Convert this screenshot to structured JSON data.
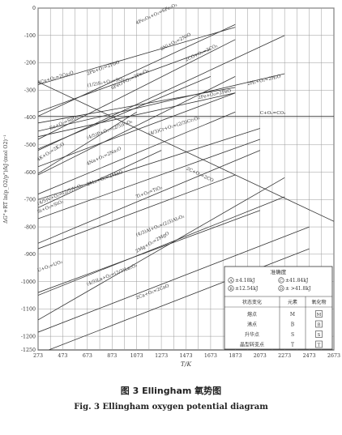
{
  "chart_data": {
    "type": "line",
    "xlabel": "T/K",
    "ylabel": "ΔG°+RT ln(p_O2/p°)/kJ·(mol O2)⁻¹",
    "xlim": [
      273,
      2673
    ],
    "ylim": [
      -1250,
      0
    ],
    "x_ticks": [
      "273",
      "473",
      "673",
      "873",
      "1073",
      "1273",
      "1473",
      "1673",
      "1873",
      "2073",
      "2273",
      "2473",
      "2673"
    ],
    "y_ticks": [
      "0",
      "-100",
      "-200",
      "-300",
      "-400",
      "-500",
      "-600",
      "-700",
      "-800",
      "-900",
      "-1000",
      "-1100",
      "-1200",
      "-1250"
    ],
    "grid": true,
    "series": [
      {
        "name": "4Fe₃O₄+O₂=6Fe₂O₃",
        "points": [
          [
            273,
            -395
          ],
          [
            1873,
            -60
          ]
        ],
        "label_at": [
          1073,
          -60
        ]
      },
      {
        "name": "2Ni+O₂=2NiO",
        "points": [
          [
            273,
            -480
          ],
          [
            1873,
            -115
          ]
        ],
        "label_at": [
          1273,
          -155
        ]
      },
      {
        "name": "2CO+O₂=2CO₂",
        "points": [
          [
            273,
            -520
          ],
          [
            2273,
            -100
          ]
        ],
        "label_at": [
          1473,
          -195
        ]
      },
      {
        "name": "2H₂+O₂=2H₂O",
        "points": [
          [
            273,
            -450
          ],
          [
            2273,
            -240
          ]
        ],
        "label_at": [
          1973,
          -282
        ]
      },
      {
        "name": "4Cu+O₂=2Cu₂O",
        "points": [
          [
            273,
            -280
          ],
          [
            1873,
            -70
          ]
        ],
        "label_at": [
          273,
          -278
        ]
      },
      {
        "name": "2Pb+O₂=2PbO",
        "points": [
          [
            273,
            -380
          ],
          [
            1673,
            -150
          ]
        ],
        "label_at": [
          673,
          -245
        ]
      },
      {
        "name": "(1/2)S₂+O₂=SO₂",
        "points": [
          [
            273,
            -420
          ],
          [
            1873,
            -290
          ]
        ],
        "label_at": [
          673,
          -288
        ]
      },
      {
        "name": "6FeO+O₂=2Fe₃O₄",
        "points": [
          [
            273,
            -610
          ],
          [
            1873,
            -250
          ]
        ],
        "label_at": [
          873,
          -298
        ]
      },
      {
        "name": "2Fe+O₂=2FeO",
        "points": [
          [
            273,
            -470
          ],
          [
            1873,
            -310
          ]
        ],
        "label_at": [
          1573,
          -333
        ]
      },
      {
        "name": "Sn+O₂=SnO₂",
        "points": [
          [
            273,
            -515
          ],
          [
            1673,
            -250
          ]
        ],
        "label_at": [
          373,
          -445
        ]
      },
      {
        "name": "(4/3)Cr+O₂=(2/3)Cr₂O₃",
        "points": [
          [
            273,
            -700
          ],
          [
            2073,
            -440
          ]
        ],
        "label_at": [
          1173,
          -465
        ]
      },
      {
        "name": "(4/5)P+O₂=(2/5)P₂O₅",
        "points": [
          [
            273,
            -580
          ],
          [
            1873,
            -310
          ]
        ],
        "label_at": [
          673,
          -480
        ]
      },
      {
        "name": "C+O₂=CO₂",
        "points": [
          [
            273,
            -395
          ],
          [
            2673,
            -395
          ]
        ],
        "label_at": [
          2073,
          -388
        ]
      },
      {
        "name": "4K+O₂=2K₂O",
        "points": [
          [
            273,
            -605
          ],
          [
            1073,
            -380
          ]
        ],
        "label_at": [
          273,
          -560
        ]
      },
      {
        "name": "4Na+O₂=2Na₂O",
        "points": [
          [
            273,
            -730
          ],
          [
            1273,
            -520
          ]
        ],
        "label_at": [
          673,
          -575
        ]
      },
      {
        "name": "2C+O₂=2CO",
        "points": [
          [
            273,
            -270
          ],
          [
            2673,
            -780
          ]
        ],
        "label_at": [
          1473,
          -590
        ]
      },
      {
        "name": "2Mn+O₂=2MnO",
        "points": [
          [
            273,
            -770
          ],
          [
            2073,
            -480
          ]
        ],
        "label_at": [
          673,
          -650
        ]
      },
      {
        "name": "Ti+O₂=TiO₂",
        "points": [
          [
            273,
            -880
          ],
          [
            1873,
            -610
          ]
        ],
        "label_at": [
          1073,
          -695
        ]
      },
      {
        "name": "(4/5)V+O₂=(2/5)V₂O₅",
        "points": [
          [
            273,
            -680
          ],
          [
            1873,
            -380
          ]
        ],
        "label_at": [
          273,
          -720
        ]
      },
      {
        "name": "Si+O₂=SiO₂",
        "points": [
          [
            273,
            -860
          ],
          [
            2073,
            -520
          ]
        ],
        "label_at": [
          273,
          -750
        ]
      },
      {
        "name": "(4/3)Al+O₂=(2/3)Al₂O₃",
        "points": [
          [
            273,
            -1050
          ],
          [
            2273,
            -690
          ]
        ],
        "label_at": [
          1073,
          -835
        ]
      },
      {
        "name": "2Mg+O₂=2MgO",
        "points": [
          [
            273,
            -1140
          ],
          [
            2273,
            -620
          ]
        ],
        "label_at": [
          1073,
          -895
        ]
      },
      {
        "name": "U+O₂=UO₂",
        "points": [
          [
            273,
            -1040
          ],
          [
            2073,
            -740
          ]
        ],
        "label_at": [
          273,
          -965
        ]
      },
      {
        "name": "(4/3)La+O₂=(2/3)La₂O₃",
        "points": [
          [
            273,
            -1185
          ],
          [
            2473,
            -800
          ]
        ],
        "label_at": [
          673,
          -1015
        ]
      },
      {
        "name": "2Ca+O₂=2CaO",
        "points": [
          [
            273,
            -1265
          ],
          [
            2473,
            -880
          ]
        ],
        "label_at": [
          1073,
          -1065
        ]
      }
    ],
    "legend_title": "准确度",
    "legend": {
      "accuracy": [
        {
          "symbol": "A",
          "text": "±4.18kJ"
        },
        {
          "symbol": "C",
          "text": "±41.84kJ"
        },
        {
          "symbol": "B",
          "text": "±12.54kJ"
        },
        {
          "symbol": "D",
          "text": "± >41.8kJ"
        }
      ],
      "headers": [
        "状态变化",
        "元素",
        "氧化物"
      ],
      "rows": [
        {
          "state": "熔点",
          "element": "M",
          "oxide": "M"
        },
        {
          "state": "沸点",
          "element": "B",
          "oxide": "B"
        },
        {
          "state": "升华点",
          "element": "S",
          "oxide": "S"
        },
        {
          "state": "晶型转变点",
          "element": "T",
          "oxide": "T"
        }
      ]
    }
  },
  "caption": {
    "cn": "图 3   Ellingham 氧势图",
    "en": "Fig. 3   Ellingham oxygen potential diagram"
  },
  "colors": {
    "grid": "#9a9a9a",
    "line": "#333333",
    "text": "#222222"
  }
}
